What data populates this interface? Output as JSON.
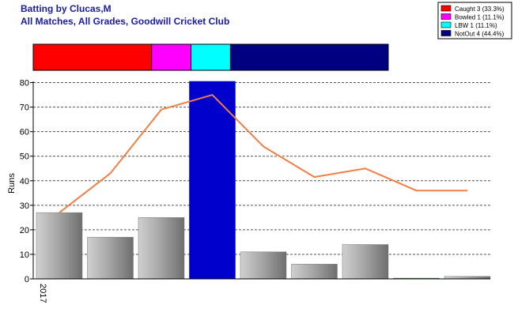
{
  "chart_data": {
    "type": "bar",
    "title": "Batting by Clucas,M",
    "subtitle": "All Matches, All Grades, Goodwill Cricket Club",
    "ylabel": "Runs",
    "ylim": [
      0,
      80
    ],
    "yticks": [
      0,
      10,
      20,
      30,
      40,
      50,
      60,
      70,
      80
    ],
    "grid": true,
    "legend_placement": "top-right",
    "categories": [
      "2017",
      "",
      "",
      "",
      "",
      "",
      "",
      "",
      ""
    ],
    "values": [
      27,
      17,
      25,
      81,
      11,
      6,
      14,
      0.3,
      1
    ],
    "highlight_index": 3,
    "trend_line": [
      27,
      43,
      69,
      75,
      54,
      41.5,
      45,
      36,
      36
    ],
    "dismissals": [
      {
        "label": "Caught 3 (33.3%)",
        "count": 3,
        "color": "#ff0000"
      },
      {
        "label": "Bowled 1 (11.1%)",
        "count": 1,
        "color": "#ff00ff"
      },
      {
        "label": "LBW 1 (11.1%)",
        "count": 1,
        "color": "#00ffff"
      },
      {
        "label": "NotOut 4 (44.4%)",
        "count": 4,
        "color": "#000080"
      }
    ],
    "colors": {
      "bar": "#9b9b9b",
      "highlight_bar": "#0000cc",
      "trend_line": "#ee7f45",
      "small_bar": "#009900"
    }
  }
}
